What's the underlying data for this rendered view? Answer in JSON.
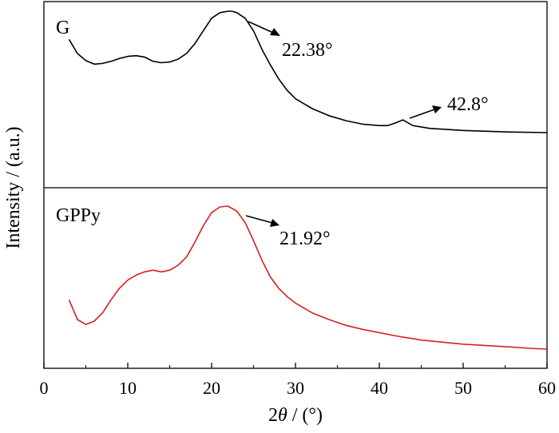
{
  "chart_data": {
    "type": "line",
    "xlabel": "2θ / (°)",
    "ylabel": "Intensity / (a.u.)",
    "xlim": [
      0,
      60
    ],
    "xticks": [
      0,
      10,
      20,
      30,
      40,
      50,
      60
    ],
    "grid": false,
    "panels": [
      {
        "label": "G",
        "color": "#000000",
        "series": {
          "x": [
            3,
            4,
            5,
            6,
            7,
            8,
            9,
            10,
            11,
            12,
            13,
            14,
            15,
            16,
            17,
            18,
            19,
            20,
            21,
            22,
            22.38,
            23,
            24,
            25,
            26,
            27,
            28,
            29,
            30,
            32,
            34,
            36,
            38,
            40,
            41,
            42,
            42.8,
            44,
            46,
            50,
            55,
            60
          ],
          "y": [
            0.8,
            0.7,
            0.65,
            0.625,
            0.63,
            0.645,
            0.665,
            0.68,
            0.685,
            0.675,
            0.645,
            0.635,
            0.64,
            0.66,
            0.7,
            0.77,
            0.86,
            0.95,
            0.99,
            1.0,
            1.0,
            0.99,
            0.95,
            0.86,
            0.73,
            0.62,
            0.52,
            0.44,
            0.38,
            0.31,
            0.26,
            0.225,
            0.2,
            0.19,
            0.19,
            0.21,
            0.23,
            0.19,
            0.17,
            0.155,
            0.145,
            0.14
          ]
        },
        "annotations": [
          {
            "text": "22.38°",
            "x": 22.38
          },
          {
            "text": "42.8°",
            "x": 42.8
          }
        ]
      },
      {
        "label": "GPPy",
        "color": "#d42020",
        "series": {
          "x": [
            3,
            4,
            5,
            6,
            7,
            8,
            9,
            10,
            11,
            12,
            13,
            14,
            15,
            16,
            17,
            18,
            19,
            20,
            21,
            21.92,
            23,
            24,
            25,
            26,
            27,
            28,
            29,
            30,
            32,
            34,
            36,
            38,
            40,
            42,
            45,
            50,
            55,
            58,
            60
          ],
          "y": [
            0.43,
            0.31,
            0.28,
            0.3,
            0.35,
            0.43,
            0.5,
            0.55,
            0.58,
            0.6,
            0.61,
            0.6,
            0.61,
            0.64,
            0.69,
            0.78,
            0.88,
            0.96,
            0.995,
            1.0,
            0.97,
            0.9,
            0.79,
            0.67,
            0.57,
            0.5,
            0.45,
            0.41,
            0.35,
            0.31,
            0.275,
            0.25,
            0.23,
            0.21,
            0.185,
            0.16,
            0.145,
            0.135,
            0.13
          ]
        },
        "annotations": [
          {
            "text": "21.92°",
            "x": 21.92
          }
        ]
      }
    ]
  }
}
